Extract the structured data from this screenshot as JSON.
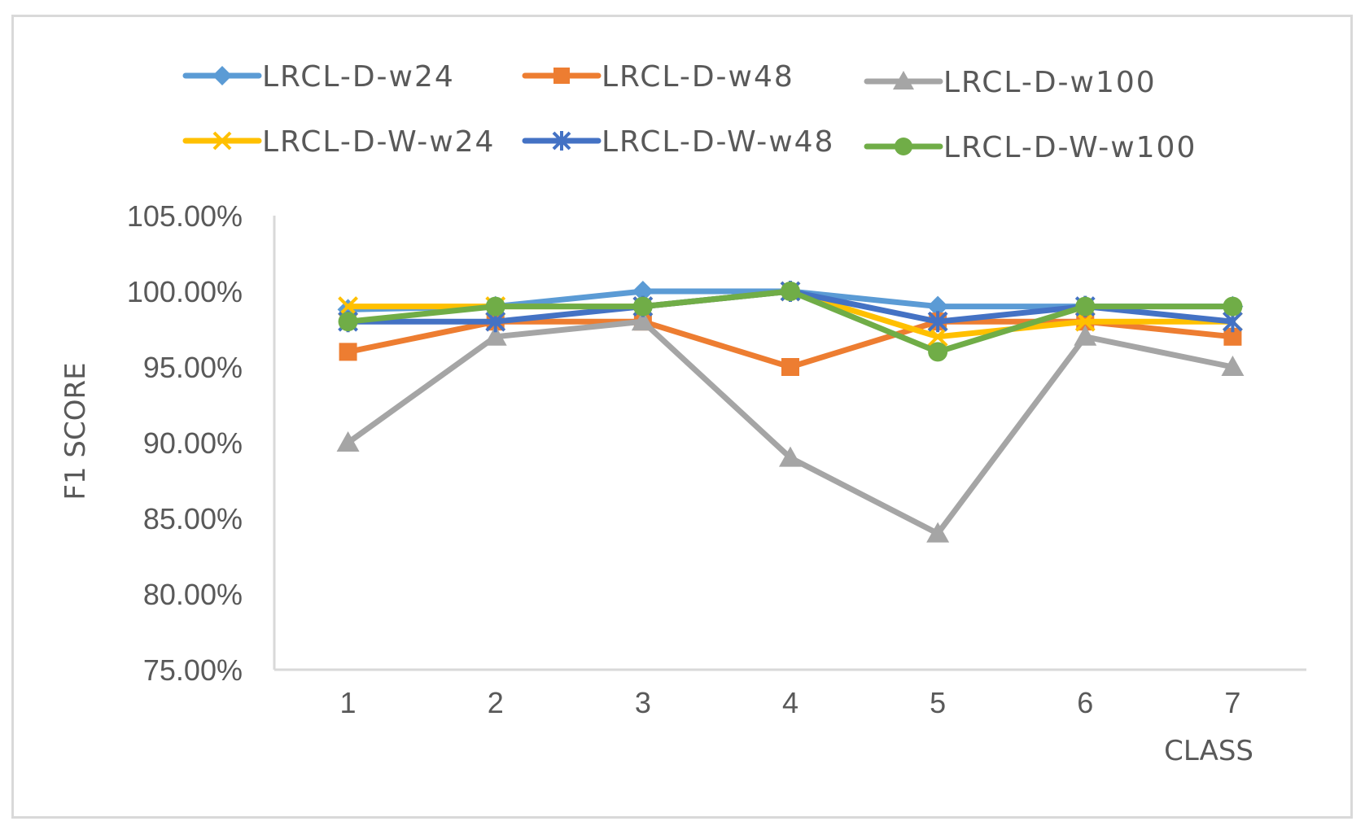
{
  "chart_data": {
    "type": "line",
    "title": "",
    "xlabel": "CLASS",
    "ylabel": "F1 SCORE",
    "categories": [
      "1",
      "2",
      "3",
      "4",
      "5",
      "6",
      "7"
    ],
    "ylim": [
      75,
      105
    ],
    "y_ticks": [
      "75.00%",
      "80.00%",
      "85.00%",
      "90.00%",
      "95.00%",
      "100.00%",
      "105.00%"
    ],
    "grid": false,
    "legend_position": "top",
    "series": [
      {
        "name": "LRCL-D-w24",
        "color": "#5B9BD5",
        "marker": "diamond",
        "values": [
          98.8,
          99.0,
          100.0,
          100.0,
          99.0,
          99.0,
          99.0
        ]
      },
      {
        "name": "LRCL-D-w48",
        "color": "#ED7D31",
        "marker": "square",
        "values": [
          96.0,
          98.0,
          98.0,
          95.0,
          98.0,
          98.0,
          97.0
        ]
      },
      {
        "name": "LRCL-D-w100",
        "color": "#A5A5A5",
        "marker": "triangle",
        "values": [
          90.0,
          97.0,
          98.0,
          89.0,
          84.0,
          97.0,
          95.0
        ]
      },
      {
        "name": "LRCL-D-W-w24",
        "color": "#FFC000",
        "marker": "x",
        "values": [
          99.0,
          99.0,
          99.0,
          100.0,
          97.0,
          98.0,
          98.0
        ]
      },
      {
        "name": "LRCL-D-W-w48",
        "color": "#4472C4",
        "marker": "star",
        "values": [
          98.0,
          98.0,
          99.0,
          100.0,
          98.0,
          99.0,
          98.0
        ]
      },
      {
        "name": "LRCL-D-W-w100",
        "color": "#70AD47",
        "marker": "circle",
        "values": [
          98.0,
          99.0,
          99.0,
          100.0,
          96.0,
          99.0,
          99.0
        ]
      }
    ]
  }
}
